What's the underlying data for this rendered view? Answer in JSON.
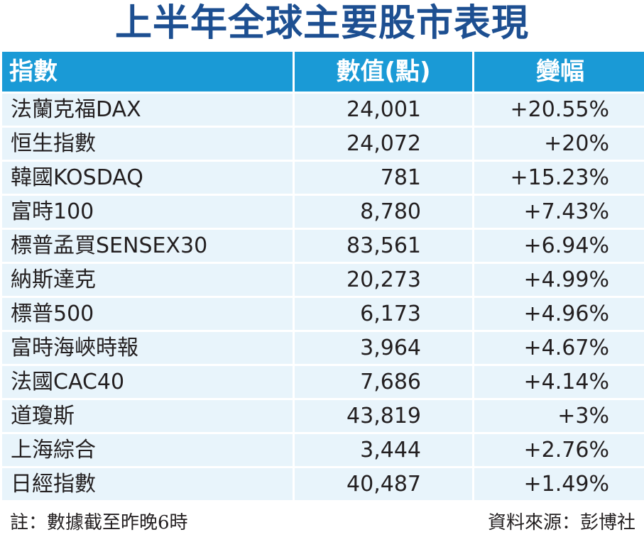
{
  "title": "上半年全球主要股市表現",
  "chart_data": {
    "type": "table",
    "title": "上半年全球主要股市表現",
    "columns": [
      "指數",
      "數值(點)",
      "變幅"
    ],
    "rows": [
      {
        "index": "法蘭克福DAX",
        "value": "24,001",
        "change": "+20.55%"
      },
      {
        "index": "恒生指數",
        "value": "24,072",
        "change": "+20%"
      },
      {
        "index": "韓國KOSDAQ",
        "value": "781",
        "change": "+15.23%"
      },
      {
        "index": "富時100",
        "value": "8,780",
        "change": "+7.43%"
      },
      {
        "index": "標普孟買SENSEX30",
        "value": "83,561",
        "change": "+6.94%"
      },
      {
        "index": "納斯達克",
        "value": "20,273",
        "change": "+4.99%"
      },
      {
        "index": "標普500",
        "value": "6,173",
        "change": "+4.96%"
      },
      {
        "index": "富時海峽時報",
        "value": "3,964",
        "change": "+4.67%"
      },
      {
        "index": "法國CAC40",
        "value": "7,686",
        "change": "+4.14%"
      },
      {
        "index": "道瓊斯",
        "value": "43,819",
        "change": "+3%"
      },
      {
        "index": "上海綜合",
        "value": "3,444",
        "change": "+2.76%"
      },
      {
        "index": "日經指數",
        "value": "40,487",
        "change": "+1.49%"
      }
    ]
  },
  "footer": {
    "note": "註：數據截至昨晚6時",
    "source": "資料來源：彭博社"
  },
  "colors": {
    "title": "#1d4f91",
    "header_bg": "#1a9ad6",
    "header_text": "#ffffff",
    "row_bg": "#e8f4fb",
    "text": "#231f20"
  }
}
